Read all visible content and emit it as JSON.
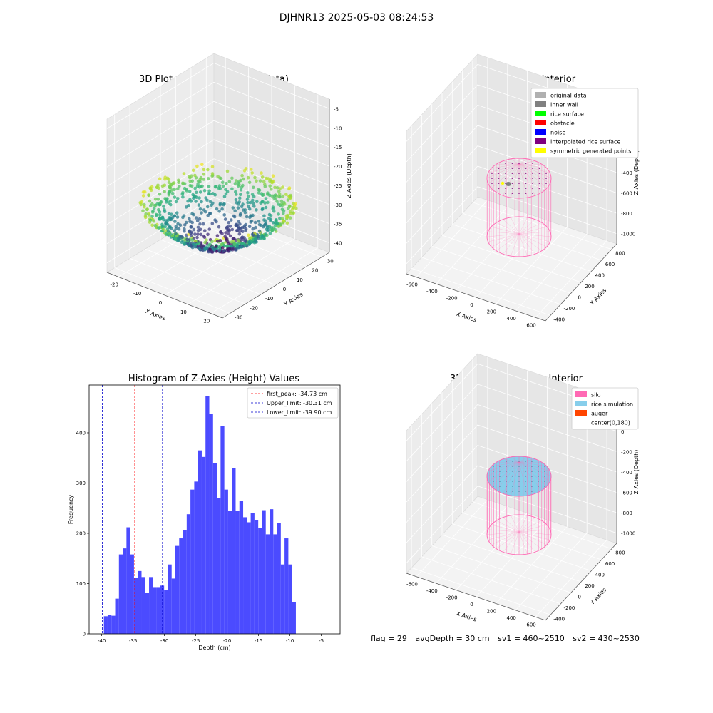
{
  "figure_title": "DJHNR13 2025-05-03 08:24:53",
  "footer": {
    "flag": "flag = 29",
    "avg_depth": "avgDepth = 30 cm",
    "sv1": "sv1 = 460~2510",
    "sv2": "sv2 = 430~2530"
  },
  "chart_data": [
    {
      "type": "scatter",
      "title": "3D Plot of Silo Interior(row data)",
      "xlabel": "X Axies",
      "ylabel": "Y Axies",
      "zlabel": "Z Axies (Depth)",
      "x_ticks": [
        "-20",
        "-10",
        "0",
        "10",
        "20"
      ],
      "y_ticks": [
        "-30",
        "-20",
        "-10",
        "0",
        "10",
        "20",
        "30"
      ],
      "z_ticks": [
        "-5",
        "-10",
        "-15",
        "-20",
        "-25",
        "-30",
        "-35",
        "-40"
      ],
      "zlim": [
        -42,
        -3
      ],
      "colormap": "viridis"
    },
    {
      "type": "scatter",
      "title": "3D classify of Silo Interior",
      "xlabel": "X Axies",
      "ylabel": "Y Axies",
      "zlabel": "Z Axies (Depth)",
      "x_ticks": [
        "-600",
        "-400",
        "-200",
        "0",
        "200",
        "400",
        "600"
      ],
      "y_ticks": [
        "-400",
        "-200",
        "0",
        "200",
        "400",
        "600",
        "800"
      ],
      "z_ticks": [
        "200",
        "0",
        "-200",
        "-400",
        "-600",
        "-800",
        "-1000"
      ],
      "legend_position": "top-right",
      "legend": [
        {
          "label": "original data",
          "color": "#b0b0b0"
        },
        {
          "label": "inner wall",
          "color": "#808080"
        },
        {
          "label": "rice surface",
          "color": "#00ff00"
        },
        {
          "label": "obstacle",
          "color": "#ff0000"
        },
        {
          "label": "noise",
          "color": "#0000ff"
        },
        {
          "label": "interpolated rice surface",
          "color": "#800080"
        },
        {
          "label": "symmetric generated points",
          "color": "#ffff00"
        }
      ]
    },
    {
      "type": "bar",
      "title": "Histogram of Z-Axies (Height) Values",
      "xlabel": "Depth (cm)",
      "ylabel": "Frequency",
      "xlim": [
        -42,
        -2
      ],
      "ylim": [
        0,
        495
      ],
      "x_ticks": [
        -40,
        -35,
        -30,
        -25,
        -20,
        -15,
        -10,
        -5
      ],
      "y_ticks": [
        0,
        100,
        200,
        300,
        400
      ],
      "bin_start": -39.65,
      "bin_width": 0.6,
      "values": [
        35,
        37,
        36,
        70,
        158,
        170,
        212,
        158,
        112,
        125,
        113,
        82,
        113,
        93,
        93,
        96,
        87,
        138,
        110,
        175,
        190,
        207,
        238,
        287,
        303,
        365,
        352,
        473,
        437,
        340,
        270,
        413,
        287,
        245,
        330,
        245,
        265,
        232,
        222,
        240,
        226,
        210,
        246,
        198,
        248,
        198,
        221,
        138,
        190,
        138,
        63
      ],
      "bar_color": "#4b4bff",
      "legend_position": "top-right",
      "lines": [
        {
          "label": "first_peak: -34.73 cm",
          "x": -34.73,
          "color": "#ff0000"
        },
        {
          "label": "Upper_limit: -30.31 cm",
          "x": -30.31,
          "color": "#0000cc"
        },
        {
          "label": "Lower_limit: -39.90 cm",
          "x": -39.9,
          "color": "#0000cc"
        }
      ]
    },
    {
      "type": "scatter",
      "title": "3D simulation of Silo Interior",
      "xlabel": "X Axies",
      "ylabel": "Y Axies",
      "zlabel": "Z Axies (Depth)",
      "x_ticks": [
        "-600",
        "-400",
        "-200",
        "0",
        "200",
        "400",
        "600"
      ],
      "y_ticks": [
        "-400",
        "-200",
        "0",
        "200",
        "400",
        "600",
        "800"
      ],
      "z_ticks": [
        "200",
        "0",
        "-200",
        "-400",
        "-600",
        "-800",
        "-1000"
      ],
      "legend_position": "top-right",
      "legend": [
        {
          "label": "silo",
          "color": "#ff69b4"
        },
        {
          "label": "rice simulation",
          "color": "#87ceeb"
        },
        {
          "label": "auger",
          "color": "#ff4500"
        },
        {
          "label": "center(0,180)",
          "color": "#ffffff"
        }
      ]
    }
  ]
}
